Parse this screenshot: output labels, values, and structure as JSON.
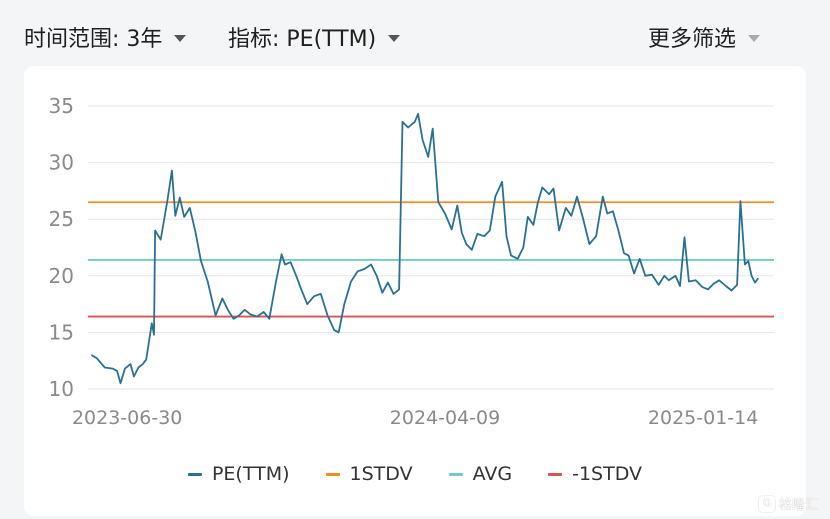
{
  "filters": {
    "time_range_label": "时间范围: 3年",
    "indicator_label": "指标: PE(TTM)",
    "more_filters_label": "更多筛选"
  },
  "watermark": {
    "logo_glyph": "G",
    "text": "格隆汇"
  },
  "colors": {
    "pe": "#2a7096",
    "stdv_plus": "#f08a24",
    "avg": "#6fcdc8",
    "stdv_minus": "#d9534f",
    "grid": "#e6e6e6",
    "tick": "#8a8a8a"
  },
  "chart_data": {
    "type": "line",
    "title": "",
    "xlabel": "",
    "ylabel": "",
    "ylim": [
      10,
      35
    ],
    "yticks": [
      10,
      15,
      20,
      25,
      30,
      35
    ],
    "xlim": [
      "2023-05-26",
      "2025-01-28"
    ],
    "xtick_labels": [
      "2023-06-30",
      "2024-04-09",
      "2025-01-14"
    ],
    "grid": "horizontal",
    "legend_position": "bottom",
    "series": [
      {
        "name": "PE(TTM)",
        "points": [
          [
            "2023-05-29",
            13.0
          ],
          [
            "2023-06-03",
            12.7
          ],
          [
            "2023-06-10",
            11.9
          ],
          [
            "2023-06-17",
            11.8
          ],
          [
            "2023-06-21",
            11.6
          ],
          [
            "2023-06-24",
            10.5
          ],
          [
            "2023-06-28",
            11.8
          ],
          [
            "2023-07-03",
            12.2
          ],
          [
            "2023-07-06",
            11.1
          ],
          [
            "2023-07-10",
            11.9
          ],
          [
            "2023-07-14",
            12.2
          ],
          [
            "2023-07-17",
            12.6
          ],
          [
            "2023-07-22",
            15.8
          ],
          [
            "2023-07-24",
            14.8
          ],
          [
            "2023-07-25",
            24.0
          ],
          [
            "2023-07-30",
            23.2
          ],
          [
            "2023-08-05",
            26.7
          ],
          [
            "2023-08-09",
            29.3
          ],
          [
            "2023-08-12",
            25.3
          ],
          [
            "2023-08-16",
            26.9
          ],
          [
            "2023-08-20",
            25.2
          ],
          [
            "2023-08-25",
            26.0
          ],
          [
            "2023-08-30",
            23.9
          ],
          [
            "2023-09-04",
            21.3
          ],
          [
            "2023-09-10",
            19.5
          ],
          [
            "2023-09-17",
            16.5
          ],
          [
            "2023-09-23",
            18.0
          ],
          [
            "2023-09-28",
            17.0
          ],
          [
            "2023-10-03",
            16.2
          ],
          [
            "2023-10-08",
            16.5
          ],
          [
            "2023-10-13",
            17.0
          ],
          [
            "2023-10-18",
            16.6
          ],
          [
            "2023-10-24",
            16.4
          ],
          [
            "2023-10-30",
            16.8
          ],
          [
            "2023-11-04",
            16.2
          ],
          [
            "2023-11-10",
            19.5
          ],
          [
            "2023-11-15",
            21.9
          ],
          [
            "2023-11-18",
            21.0
          ],
          [
            "2023-11-23",
            21.2
          ],
          [
            "2023-11-28",
            20.0
          ],
          [
            "2023-12-03",
            18.7
          ],
          [
            "2023-12-08",
            17.5
          ],
          [
            "2023-12-14",
            18.2
          ],
          [
            "2023-12-20",
            18.4
          ],
          [
            "2023-12-26",
            16.5
          ],
          [
            "2024-01-01",
            15.2
          ],
          [
            "2024-01-05",
            15.0
          ],
          [
            "2024-01-10",
            17.5
          ],
          [
            "2024-01-16",
            19.5
          ],
          [
            "2024-01-22",
            20.4
          ],
          [
            "2024-01-28",
            20.6
          ],
          [
            "2024-02-03",
            21.0
          ],
          [
            "2024-02-08",
            20.0
          ],
          [
            "2024-02-13",
            18.5
          ],
          [
            "2024-02-18",
            19.4
          ],
          [
            "2024-02-23",
            18.4
          ],
          [
            "2024-02-28",
            18.8
          ],
          [
            "2024-03-02",
            33.6
          ],
          [
            "2024-03-07",
            33.1
          ],
          [
            "2024-03-13",
            33.6
          ],
          [
            "2024-03-16",
            34.3
          ],
          [
            "2024-03-20",
            32.0
          ],
          [
            "2024-03-25",
            30.5
          ],
          [
            "2024-03-29",
            33.0
          ],
          [
            "2024-04-03",
            26.5
          ],
          [
            "2024-04-09",
            25.5
          ],
          [
            "2024-04-15",
            24.1
          ],
          [
            "2024-04-20",
            26.2
          ],
          [
            "2024-04-24",
            23.8
          ],
          [
            "2024-04-28",
            22.8
          ],
          [
            "2024-05-03",
            22.3
          ],
          [
            "2024-05-08",
            23.7
          ],
          [
            "2024-05-14",
            23.5
          ],
          [
            "2024-05-19",
            24.0
          ],
          [
            "2024-05-24",
            27.0
          ],
          [
            "2024-05-30",
            28.3
          ],
          [
            "2024-06-03",
            23.5
          ],
          [
            "2024-06-07",
            21.8
          ],
          [
            "2024-06-13",
            21.5
          ],
          [
            "2024-06-18",
            22.5
          ],
          [
            "2024-06-22",
            25.2
          ],
          [
            "2024-06-27",
            24.5
          ],
          [
            "2024-07-01",
            26.5
          ],
          [
            "2024-07-05",
            27.8
          ],
          [
            "2024-07-11",
            27.2
          ],
          [
            "2024-07-15",
            27.7
          ],
          [
            "2024-07-20",
            24.0
          ],
          [
            "2024-07-26",
            26.0
          ],
          [
            "2024-07-31",
            25.3
          ],
          [
            "2024-08-05",
            27.0
          ],
          [
            "2024-08-10",
            25.2
          ],
          [
            "2024-08-16",
            22.8
          ],
          [
            "2024-08-22",
            23.5
          ],
          [
            "2024-08-28",
            27.0
          ],
          [
            "2024-09-01",
            25.5
          ],
          [
            "2024-09-06",
            25.7
          ],
          [
            "2024-09-11",
            24.0
          ],
          [
            "2024-09-16",
            22.0
          ],
          [
            "2024-09-20",
            21.8
          ],
          [
            "2024-09-25",
            20.2
          ],
          [
            "2024-09-30",
            21.5
          ],
          [
            "2024-10-05",
            20.0
          ],
          [
            "2024-10-11",
            20.1
          ],
          [
            "2024-10-17",
            19.2
          ],
          [
            "2024-10-22",
            20.0
          ],
          [
            "2024-10-26",
            19.6
          ],
          [
            "2024-11-01",
            20.0
          ],
          [
            "2024-11-05",
            19.1
          ],
          [
            "2024-11-09",
            23.4
          ],
          [
            "2024-11-13",
            19.5
          ],
          [
            "2024-11-19",
            19.6
          ],
          [
            "2024-11-25",
            19.0
          ],
          [
            "2024-11-30",
            18.8
          ],
          [
            "2024-12-05",
            19.3
          ],
          [
            "2024-12-10",
            19.6
          ],
          [
            "2024-12-16",
            19.1
          ],
          [
            "2024-12-21",
            18.7
          ],
          [
            "2024-12-26",
            19.2
          ],
          [
            "2024-12-29",
            26.6
          ],
          [
            "2025-01-02",
            21.0
          ],
          [
            "2025-01-05",
            21.3
          ],
          [
            "2025-01-08",
            20.0
          ],
          [
            "2025-01-11",
            19.4
          ],
          [
            "2025-01-14",
            19.8
          ]
        ]
      },
      {
        "name": "1STDV",
        "value": 26.5
      },
      {
        "name": "AVG",
        "value": 21.4
      },
      {
        "name": "-1STDV",
        "value": 16.4
      }
    ]
  }
}
